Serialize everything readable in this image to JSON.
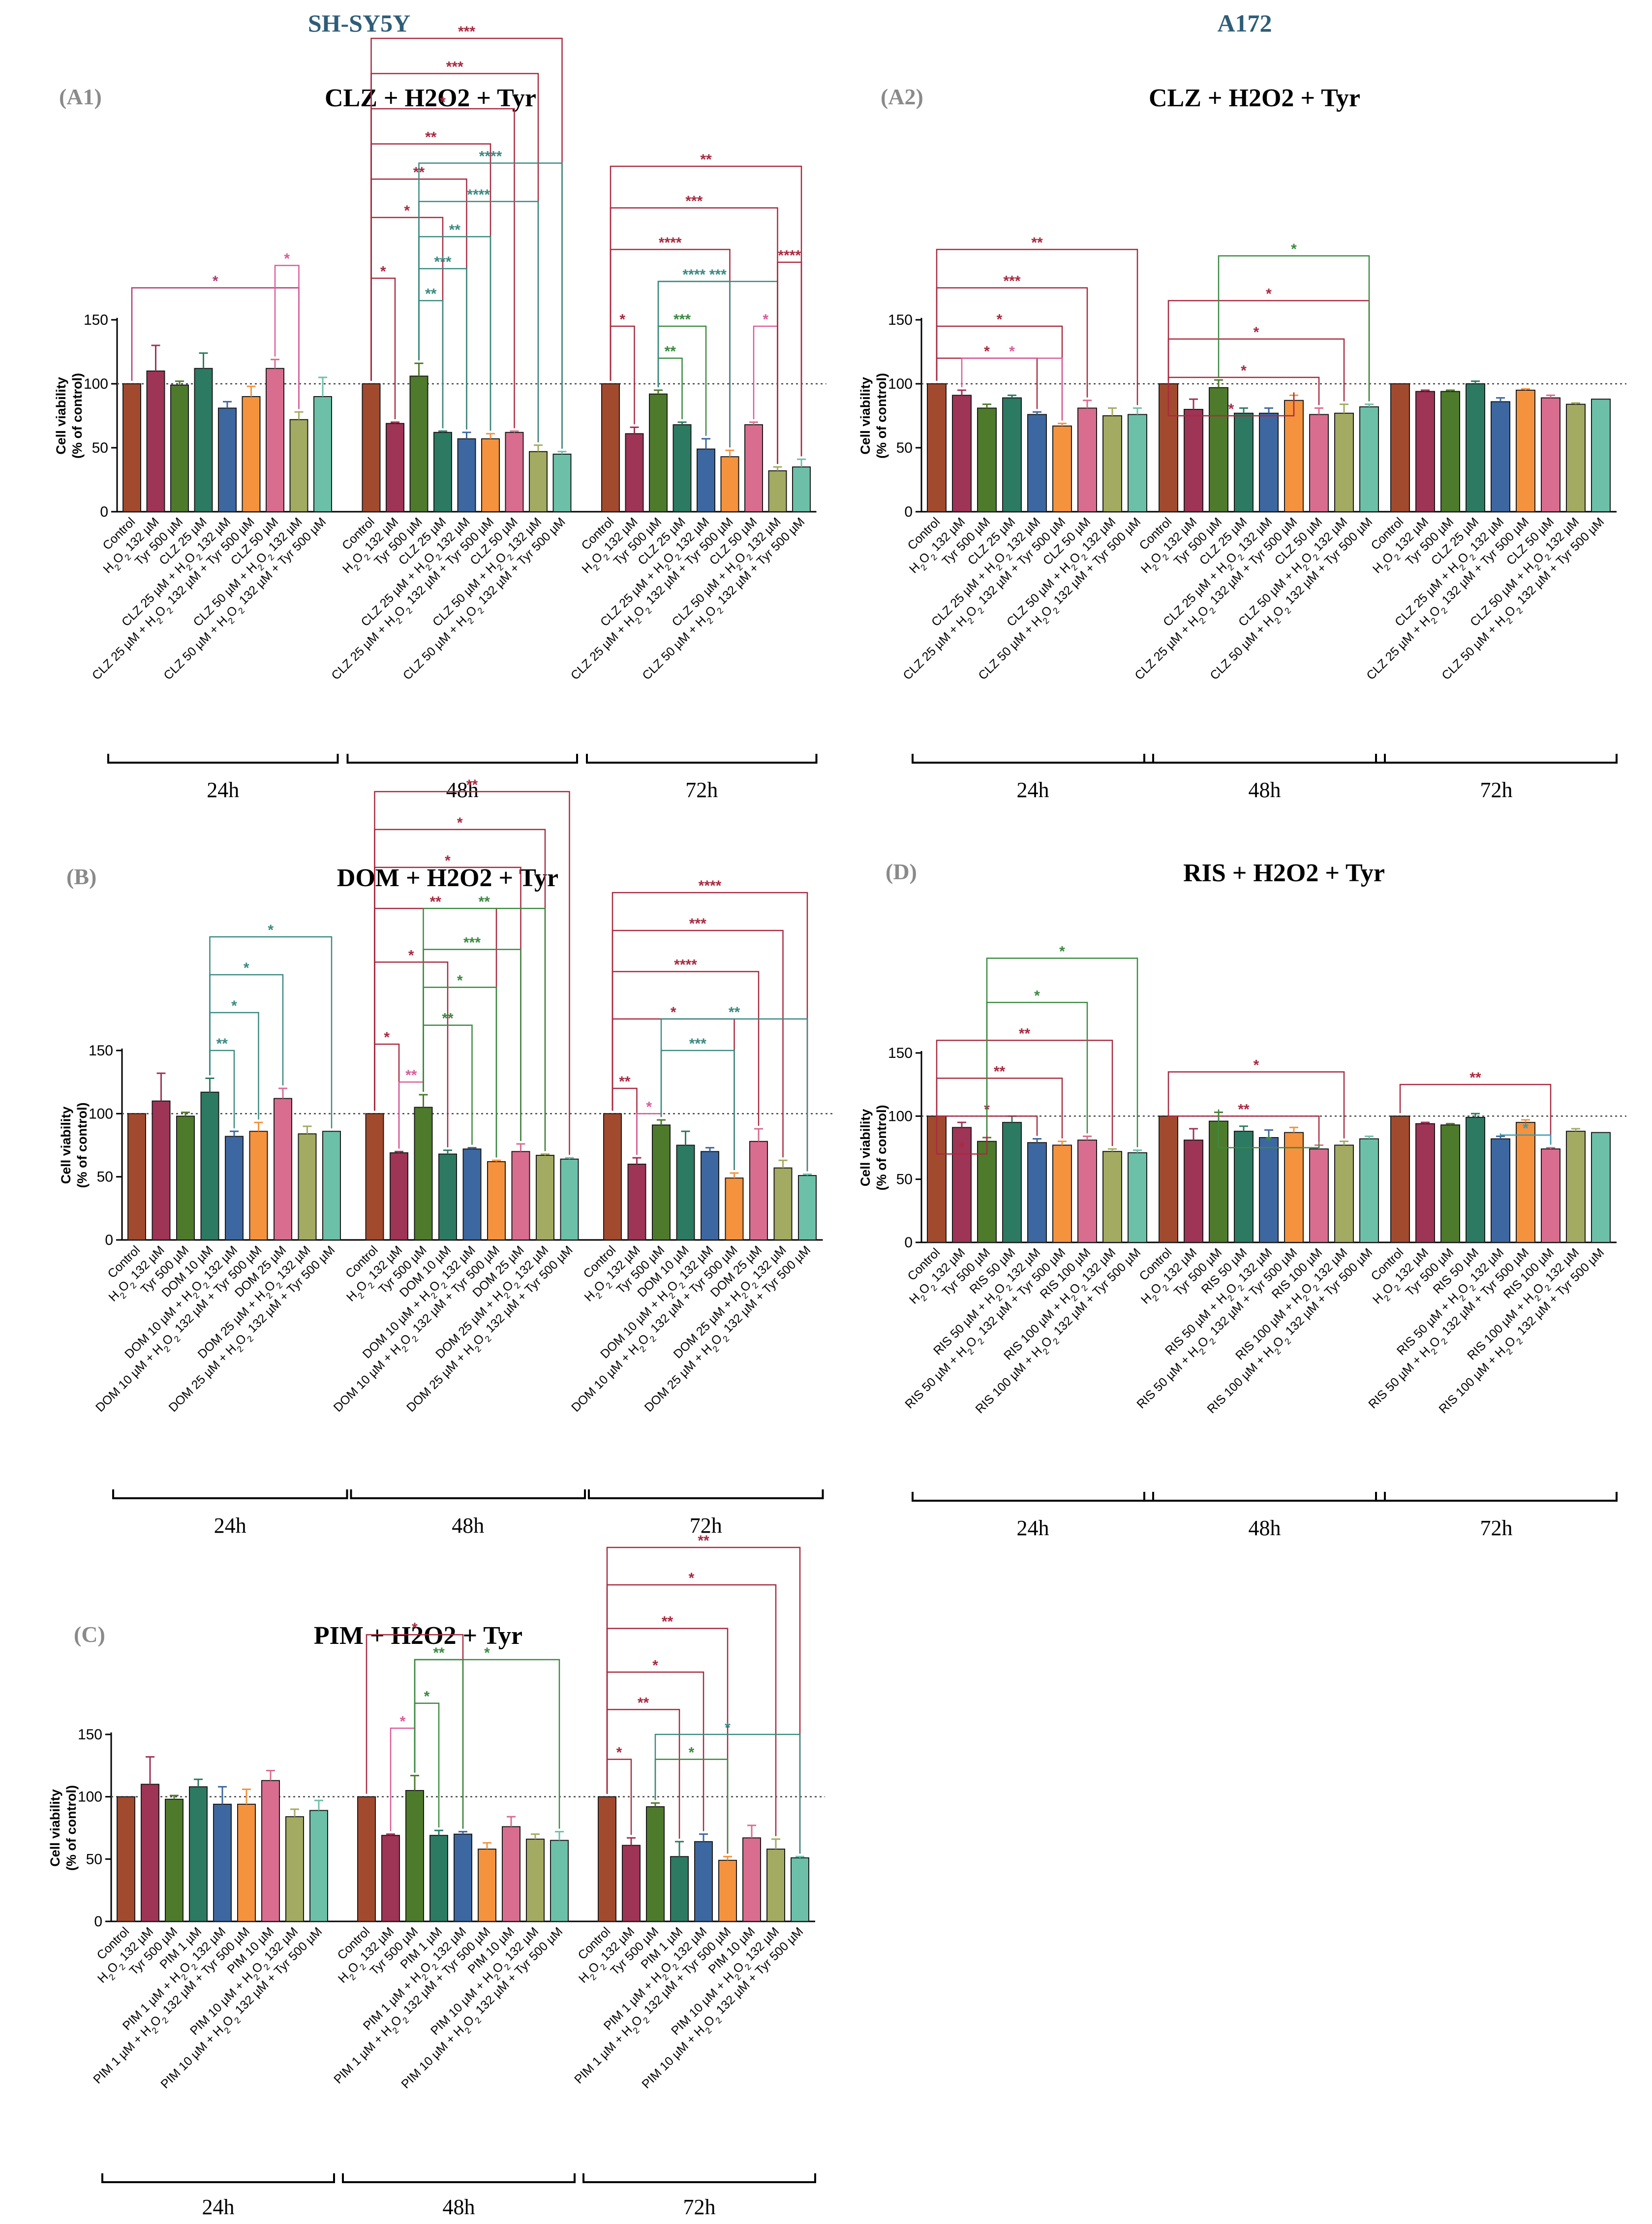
{
  "columns": [
    "SH-SY5Y",
    "A172"
  ],
  "colors": [
    "#a24a2e",
    "#9e3456",
    "#4e7a2c",
    "#2c7a62",
    "#3d67a0",
    "#f5923e",
    "#d96d8f",
    "#a3aa62",
    "#6cc0a8"
  ],
  "chart_data": [
    {
      "id": "A1",
      "label": "(A1)",
      "title": "CLZ + H2O2 + Tyr",
      "type": "bar",
      "ylabel": "Cell viability",
      "ylabel2": "(% of control)",
      "ylim": [
        0,
        150
      ],
      "yticks": [
        0,
        50,
        100,
        150
      ],
      "categories": [
        "Control",
        "H2O2 132 µM",
        "Tyr 500 µM",
        "CLZ 25 µM",
        "CLZ 25 µM + H2O2 132 µM",
        "CLZ 25 µM + H2O2 132 µM + Tyr 500 µM",
        "CLZ 50 µM",
        "CLZ 50 µM + H2O2 132 µM",
        "CLZ 50 µM + H2O2 132 µM + Tyr 500 µM"
      ],
      "groups": [
        {
          "time": "24h",
          "values": [
            100,
            110,
            99,
            112,
            81,
            90,
            112,
            72,
            90
          ],
          "errors": [
            0,
            20,
            3,
            12,
            5,
            8,
            7,
            6,
            15
          ]
        },
        {
          "time": "48h",
          "values": [
            100,
            69,
            106,
            62,
            57,
            57,
            62,
            47,
            45
          ],
          "errors": [
            0,
            1,
            10,
            1,
            5,
            4,
            1,
            5,
            2
          ]
        },
        {
          "time": "72h",
          "values": [
            100,
            61,
            92,
            68,
            49,
            43,
            68,
            32,
            35
          ],
          "errors": [
            0,
            5,
            3,
            2,
            8,
            5,
            2,
            3,
            6
          ]
        }
      ]
    },
    {
      "id": "A2",
      "label": "(A2)",
      "title": "CLZ + H2O2 + Tyr",
      "type": "bar",
      "ylabel": "Cell viability",
      "ylabel2": "(% of control)",
      "ylim": [
        0,
        150
      ],
      "yticks": [
        0,
        50,
        100,
        150
      ],
      "categories": [
        "Control",
        "H2O2 132 µM",
        "Tyr 500 µM",
        "CLZ 25 µM",
        "CLZ 25 µM + H2O2 132 µM",
        "CLZ 25 µM + H2O2 132 µM + Tyr 500 µM",
        "CLZ 50 µM",
        "CLZ 50 µM + H2O2 132 µM",
        "CLZ 50 µM + H2O2 132 µM + Tyr 500 µM"
      ],
      "groups": [
        {
          "time": "24h",
          "values": [
            100,
            91,
            81,
            89,
            76,
            67,
            81,
            75,
            76
          ],
          "errors": [
            0,
            4,
            3,
            2,
            2,
            2,
            6,
            6,
            5
          ]
        },
        {
          "time": "48h",
          "values": [
            100,
            80,
            97,
            77,
            77,
            87,
            76,
            77,
            82
          ],
          "errors": [
            0,
            8,
            6,
            4,
            4,
            4,
            5,
            7,
            2
          ]
        },
        {
          "time": "72h",
          "values": [
            100,
            94,
            94,
            100,
            86,
            95,
            89,
            84,
            88
          ],
          "errors": [
            0,
            1,
            1,
            2,
            3,
            1,
            2,
            1,
            0
          ]
        }
      ]
    },
    {
      "id": "B",
      "label": "(B)",
      "title": "DOM + H2O2 + Tyr",
      "type": "bar",
      "ylabel": "Cell viability",
      "ylabel2": "(% of control)",
      "ylim": [
        0,
        150
      ],
      "yticks": [
        0,
        50,
        100,
        150
      ],
      "categories": [
        "Control",
        "H2O2 132 µM",
        "Tyr 500 µM",
        "DOM 10 µM",
        "DOM 10 µM + H2O2 132 µM",
        "DOM 10 µM + H2O2 132 µM + Tyr 500 µM",
        "DOM 25 µM",
        "DOM 25 µM + H2O2 132 µM",
        "DOM 25 µM + H2O2 132 µM + Tyr 500 µM"
      ],
      "groups": [
        {
          "time": "24h",
          "values": [
            100,
            110,
            98,
            117,
            82,
            86,
            112,
            84,
            86
          ],
          "errors": [
            0,
            22,
            3,
            11,
            4,
            7,
            8,
            6,
            0
          ]
        },
        {
          "time": "48h",
          "values": [
            100,
            69,
            105,
            68,
            72,
            62,
            70,
            67,
            64
          ],
          "errors": [
            0,
            1,
            10,
            3,
            1,
            1,
            6,
            1,
            1
          ]
        },
        {
          "time": "72h",
          "values": [
            100,
            60,
            91,
            75,
            70,
            49,
            78,
            57,
            51
          ],
          "errors": [
            0,
            5,
            4,
            11,
            3,
            4,
            10,
            6,
            1
          ]
        }
      ]
    },
    {
      "id": "D",
      "label": "(D)",
      "title": "RIS + H2O2 + Tyr",
      "type": "bar",
      "ylabel": "Cell viability",
      "ylabel2": "(% of control)",
      "ylim": [
        0,
        150
      ],
      "yticks": [
        0,
        50,
        100,
        150
      ],
      "categories": [
        "Control",
        "H2O2 132 µM",
        "Tyr 500 µM",
        "RIS 50 µM",
        "RIS 50 µM + H2O2 132 µM",
        "RIS 50 µM + H2O2 132 µM + Tyr 500 µM",
        "RIS 100 µM",
        "RIS 100 µM + H2O2 132 µM",
        "RIS 100 µM + H2O2 132 µM + Tyr 500 µM"
      ],
      "groups": [
        {
          "time": "24h",
          "values": [
            100,
            91,
            80,
            95,
            79,
            77,
            81,
            72,
            71
          ],
          "errors": [
            0,
            4,
            3,
            5,
            3,
            3,
            3,
            2,
            2
          ]
        },
        {
          "time": "48h",
          "values": [
            100,
            81,
            96,
            88,
            83,
            87,
            74,
            77,
            82
          ],
          "errors": [
            0,
            9,
            7,
            4,
            6,
            4,
            3,
            3,
            2
          ]
        },
        {
          "time": "72h",
          "values": [
            100,
            94,
            93,
            99,
            82,
            95,
            74,
            88,
            87
          ],
          "errors": [
            0,
            1,
            1,
            3,
            2,
            2,
            1,
            2,
            0
          ]
        }
      ]
    },
    {
      "id": "C",
      "label": "(C)",
      "title": "PIM + H2O2 + Tyr",
      "type": "bar",
      "ylabel": "Cell viability",
      "ylabel2": "(% of control)",
      "ylim": [
        0,
        150
      ],
      "yticks": [
        0,
        50,
        100,
        150
      ],
      "categories": [
        "Control",
        "H2O2 132 µM",
        "Tyr 500 µM",
        "PIM 1 µM",
        "PIM 1 µM + H2O2 132 µM",
        "PIM 1 µM + H2O2 132 µM + Tyr 500 µM",
        "PIM 10 µM",
        "PIM 10 µM + H2O2 132 µM",
        "PIM 10 µM + H2O2 132 µM + Tyr 500 µM"
      ],
      "groups": [
        {
          "time": "24h",
          "values": [
            100,
            110,
            98,
            108,
            94,
            94,
            113,
            84,
            89
          ],
          "errors": [
            0,
            22,
            3,
            6,
            14,
            12,
            8,
            6,
            8
          ]
        },
        {
          "time": "48h",
          "values": [
            100,
            69,
            105,
            69,
            70,
            58,
            76,
            66,
            65
          ],
          "errors": [
            0,
            1,
            12,
            4,
            2,
            5,
            8,
            4,
            7
          ]
        },
        {
          "time": "72h",
          "values": [
            100,
            61,
            92,
            52,
            64,
            49,
            67,
            58,
            51
          ],
          "errors": [
            0,
            6,
            3,
            12,
            6,
            3,
            10,
            8,
            1
          ]
        }
      ]
    }
  ]
}
